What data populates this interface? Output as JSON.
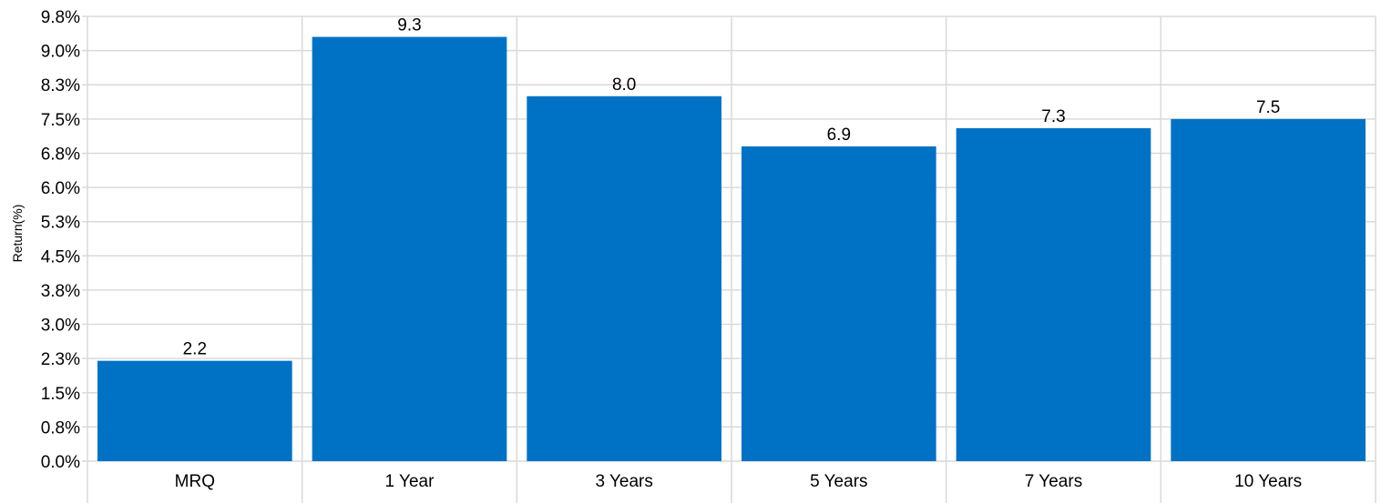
{
  "chart_data": {
    "type": "bar",
    "title": "",
    "xlabel": "",
    "ylabel": "Return(%)",
    "categories": [
      "MRQ",
      "1 Year",
      "3 Years",
      "5 Years",
      "7 Years",
      "10 Years"
    ],
    "values": [
      2.2,
      9.3,
      8.0,
      6.9,
      7.3,
      7.5
    ],
    "value_labels": [
      "2.2",
      "9.3",
      "8.0",
      "6.9",
      "7.3",
      "7.5"
    ],
    "ylim": [
      0,
      9.75
    ],
    "y_ticks": [
      0,
      0.75,
      1.5,
      2.25,
      3.0,
      3.75,
      4.5,
      5.25,
      6.0,
      6.75,
      7.5,
      8.25,
      9.0,
      9.75
    ],
    "y_tick_labels": [
      "0.0%",
      "0.8%",
      "1.5%",
      "2.3%",
      "3.0%",
      "3.8%",
      "4.5%",
      "5.3%",
      "6.0%",
      "6.8%",
      "7.5%",
      "8.3%",
      "9.0%",
      "9.8%"
    ],
    "grid": true,
    "legend": "none",
    "bar_color": "#0072c6",
    "grid_color": "#d9d9d9"
  }
}
